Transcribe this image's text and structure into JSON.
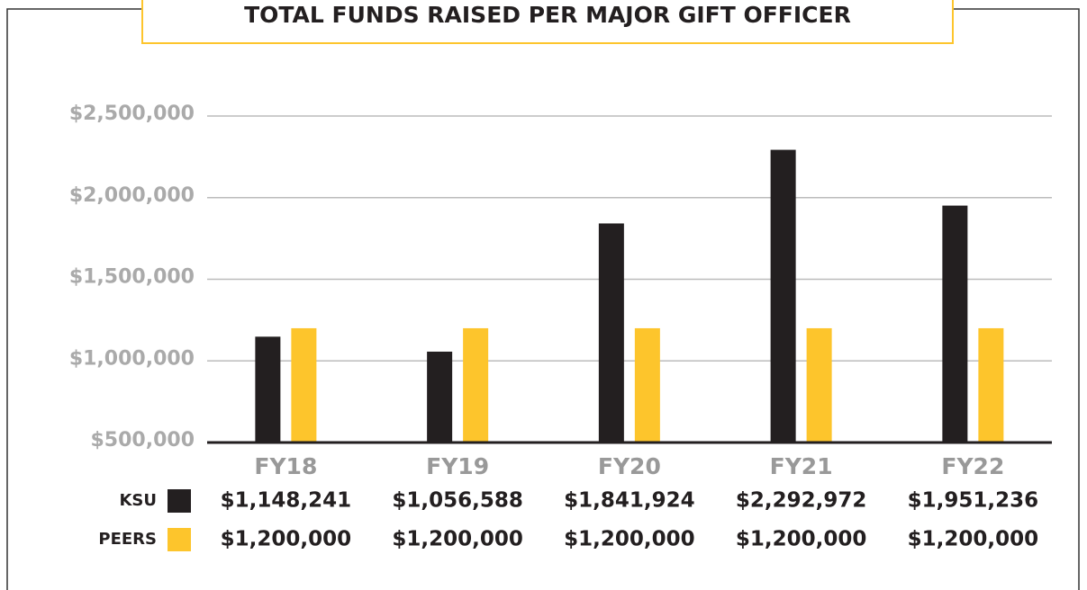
{
  "chart_data": {
    "type": "bar",
    "title": "TOTAL FUNDS RAISED PER MAJOR GIFT OFFICER",
    "categories": [
      "FY18",
      "FY19",
      "FY20",
      "FY21",
      "FY22"
    ],
    "series": [
      {
        "name": "KSU",
        "color": "#231f20",
        "values": [
          1148241,
          1056588,
          1841924,
          2292972,
          1951236
        ],
        "value_labels": [
          "$1,148,241",
          "$1,056,588",
          "$1,841,924",
          "$2,292,972",
          "$1,951,236"
        ]
      },
      {
        "name": "PEERS",
        "color": "#fdc52c",
        "values": [
          1200000,
          1200000,
          1200000,
          1200000,
          1200000
        ],
        "value_labels": [
          "$1,200,000",
          "$1,200,000",
          "$1,200,000",
          "$1,200,000",
          "$1,200,000"
        ]
      }
    ],
    "ylim": [
      500000,
      2500000
    ],
    "yticks": [
      {
        "value": 500000,
        "label": "$500,000"
      },
      {
        "value": 1000000,
        "label": "$1,000,000"
      },
      {
        "value": 1500000,
        "label": "$1,500,000"
      },
      {
        "value": 2000000,
        "label": "$2,000,000"
      },
      {
        "value": 2500000,
        "label": "$2,500,000"
      }
    ],
    "grid": true
  }
}
